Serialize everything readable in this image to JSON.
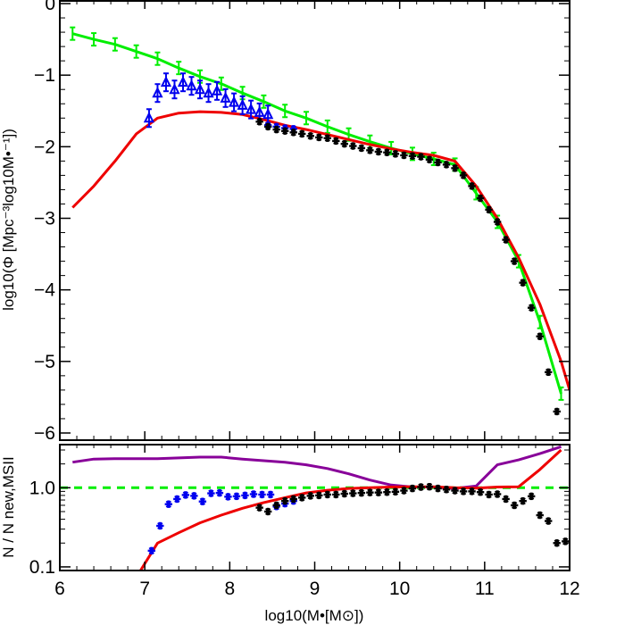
{
  "chart_data": [
    {
      "type": "line",
      "panel": "main",
      "xlabel": "",
      "ylabel": "log10(Φ [Mpc⁻³log10M•⁻¹])",
      "xlim": [
        6,
        12
      ],
      "ylim": [
        -6.1,
        0.05
      ],
      "xticks": [
        6,
        7,
        8,
        9,
        10,
        11,
        12
      ],
      "yticks": [
        0,
        -1,
        -2,
        -3,
        -4,
        -5,
        -6
      ],
      "ytick_labels": [
        "0",
        "−1",
        "−2",
        "−3",
        "−4",
        "−5",
        "−6"
      ],
      "grid": false,
      "series": [
        {
          "color": "#00ee00",
          "style": "line",
          "errorbars": true,
          "x": [
            6.15,
            6.4,
            6.65,
            6.9,
            7.15,
            7.4,
            7.65,
            7.9,
            8.15,
            8.4,
            8.65,
            8.9,
            9.15,
            9.4,
            9.65,
            9.9,
            10.15,
            10.4,
            10.65,
            10.9,
            11.15,
            11.4,
            11.65,
            11.9
          ],
          "y": [
            -0.42,
            -0.5,
            -0.57,
            -0.67,
            -0.77,
            -0.9,
            -1.02,
            -1.12,
            -1.25,
            -1.37,
            -1.5,
            -1.6,
            -1.72,
            -1.83,
            -1.93,
            -2.02,
            -2.1,
            -2.17,
            -2.25,
            -2.65,
            -3.05,
            -3.6,
            -4.45,
            -5.45
          ]
        },
        {
          "color": "#ee0000",
          "style": "line",
          "x": [
            6.15,
            6.4,
            6.65,
            6.9,
            7.15,
            7.4,
            7.65,
            7.9,
            8.15,
            8.4,
            8.65,
            8.9,
            9.15,
            9.4,
            9.65,
            9.9,
            10.15,
            10.4,
            10.65,
            10.9,
            11.15,
            11.4,
            11.65,
            11.9,
            12.0
          ],
          "y": [
            -2.85,
            -2.55,
            -2.2,
            -1.82,
            -1.6,
            -1.53,
            -1.51,
            -1.52,
            -1.55,
            -1.62,
            -1.7,
            -1.76,
            -1.83,
            -1.9,
            -1.97,
            -2.03,
            -2.08,
            -2.12,
            -2.2,
            -2.55,
            -3.0,
            -3.55,
            -4.2,
            -5.0,
            -5.4
          ]
        },
        {
          "color": "#0000ee",
          "style": "triangle-errorbars",
          "x": [
            7.05,
            7.15,
            7.25,
            7.35,
            7.45,
            7.55,
            7.65,
            7.75,
            7.85,
            7.95,
            8.05,
            8.15,
            8.25,
            8.35,
            8.45
          ],
          "y": [
            -1.6,
            -1.25,
            -1.1,
            -1.2,
            -1.1,
            -1.15,
            -1.2,
            -1.25,
            -1.22,
            -1.32,
            -1.38,
            -1.42,
            -1.48,
            -1.52,
            -1.55
          ]
        },
        {
          "color": "#0000ee",
          "style": "asterisk",
          "x": [
            8.45,
            8.55,
            8.65,
            8.75
          ],
          "y": [
            -1.7,
            -1.72,
            -1.74,
            -1.75
          ]
        },
        {
          "color": "#000000",
          "style": "asterisk",
          "x": [
            8.35,
            8.45,
            8.55,
            8.65,
            8.75,
            8.85,
            8.95,
            9.05,
            9.15,
            9.25,
            9.35,
            9.45,
            9.55,
            9.65,
            9.75,
            9.85,
            9.95,
            10.05,
            10.15,
            10.25,
            10.35,
            10.45,
            10.55,
            10.65,
            10.75,
            10.85,
            10.95,
            11.05,
            11.15,
            11.25,
            11.35,
            11.45,
            11.55,
            11.65,
            11.75,
            11.85
          ],
          "y": [
            -1.65,
            -1.72,
            -1.76,
            -1.78,
            -1.8,
            -1.82,
            -1.85,
            -1.87,
            -1.88,
            -1.92,
            -1.96,
            -1.99,
            -2.02,
            -2.05,
            -2.07,
            -2.08,
            -2.1,
            -2.12,
            -2.13,
            -2.14,
            -2.18,
            -2.22,
            -2.25,
            -2.3,
            -2.4,
            -2.55,
            -2.72,
            -2.88,
            -3.05,
            -3.3,
            -3.6,
            -3.9,
            -4.25,
            -4.65,
            -5.15,
            -5.7
          ]
        }
      ]
    },
    {
      "type": "line",
      "panel": "ratio",
      "xlabel": "log10(M•[M⊙])",
      "ylabel": "N / N new,MSII",
      "log_y": true,
      "xlim": [
        6,
        12
      ],
      "ylim": [
        0.09,
        3.6
      ],
      "xticks": [
        6,
        7,
        8,
        9,
        10,
        11,
        12
      ],
      "xtick_labels": [
        "6",
        "7",
        "8",
        "9",
        "10",
        "11",
        "12"
      ],
      "yticks": [
        1.0,
        0.1
      ],
      "ytick_labels": [
        "1.0",
        "0.1"
      ],
      "grid": false,
      "series": [
        {
          "color": "#00ee00",
          "style": "dashed",
          "x": [
            6,
            12
          ],
          "y": [
            1.0,
            1.0
          ]
        },
        {
          "color": "#880099",
          "style": "line",
          "x": [
            6.15,
            6.4,
            6.65,
            6.9,
            7.15,
            7.4,
            7.65,
            7.9,
            8.15,
            8.4,
            8.65,
            8.9,
            9.15,
            9.4,
            9.65,
            9.9,
            10.15,
            10.4,
            10.65,
            10.9,
            11.15,
            11.4,
            11.65,
            11.9
          ],
          "y": [
            2.1,
            2.3,
            2.33,
            2.33,
            2.33,
            2.38,
            2.44,
            2.44,
            2.3,
            2.2,
            2.1,
            1.95,
            1.75,
            1.5,
            1.25,
            1.08,
            1.02,
            1.02,
            0.98,
            1.05,
            1.95,
            2.25,
            2.7,
            3.3
          ]
        },
        {
          "color": "#ee0000",
          "style": "line",
          "x": [
            6.95,
            7.15,
            7.4,
            7.65,
            7.9,
            8.15,
            8.4,
            8.65,
            8.9,
            9.15,
            9.4,
            9.65,
            9.9,
            10.15,
            10.4,
            10.65,
            10.9,
            11.15,
            11.4,
            11.65,
            11.9
          ],
          "y": [
            0.09,
            0.2,
            0.27,
            0.36,
            0.45,
            0.55,
            0.65,
            0.75,
            0.86,
            0.93,
            0.98,
            1.0,
            1.02,
            1.03,
            1.03,
            1.0,
            0.99,
            1.02,
            1.03,
            1.7,
            3.0
          ]
        },
        {
          "color": "#0000ee",
          "style": "asterisk",
          "x": [
            7.08,
            7.18,
            7.28,
            7.38,
            7.48,
            7.58,
            7.68,
            7.78,
            7.88,
            7.98,
            8.08,
            8.18,
            8.28,
            8.38,
            8.48,
            8.55,
            8.65,
            8.75
          ],
          "y": [
            0.16,
            0.33,
            0.62,
            0.72,
            0.81,
            0.79,
            0.67,
            0.85,
            0.86,
            0.77,
            0.78,
            0.8,
            0.83,
            0.82,
            0.82,
            0.58,
            0.63,
            0.68
          ]
        },
        {
          "color": "#000000",
          "style": "asterisk",
          "x": [
            8.35,
            8.45,
            8.55,
            8.65,
            8.75,
            8.85,
            8.95,
            9.05,
            9.15,
            9.25,
            9.35,
            9.45,
            9.55,
            9.65,
            9.75,
            9.85,
            9.95,
            10.05,
            10.15,
            10.25,
            10.35,
            10.45,
            10.55,
            10.65,
            10.75,
            10.85,
            10.95,
            11.05,
            11.15,
            11.25,
            11.35,
            11.45,
            11.55,
            11.65,
            11.75,
            11.85,
            11.95
          ],
          "y": [
            0.56,
            0.5,
            0.6,
            0.68,
            0.72,
            0.75,
            0.79,
            0.8,
            0.82,
            0.82,
            0.84,
            0.85,
            0.86,
            0.87,
            0.87,
            0.88,
            0.89,
            0.92,
            0.98,
            1.02,
            1.03,
            0.98,
            0.95,
            0.92,
            0.9,
            0.9,
            0.88,
            0.82,
            0.83,
            0.72,
            0.6,
            0.68,
            0.78,
            0.45,
            0.38,
            0.2,
            0.21
          ]
        }
      ]
    }
  ]
}
